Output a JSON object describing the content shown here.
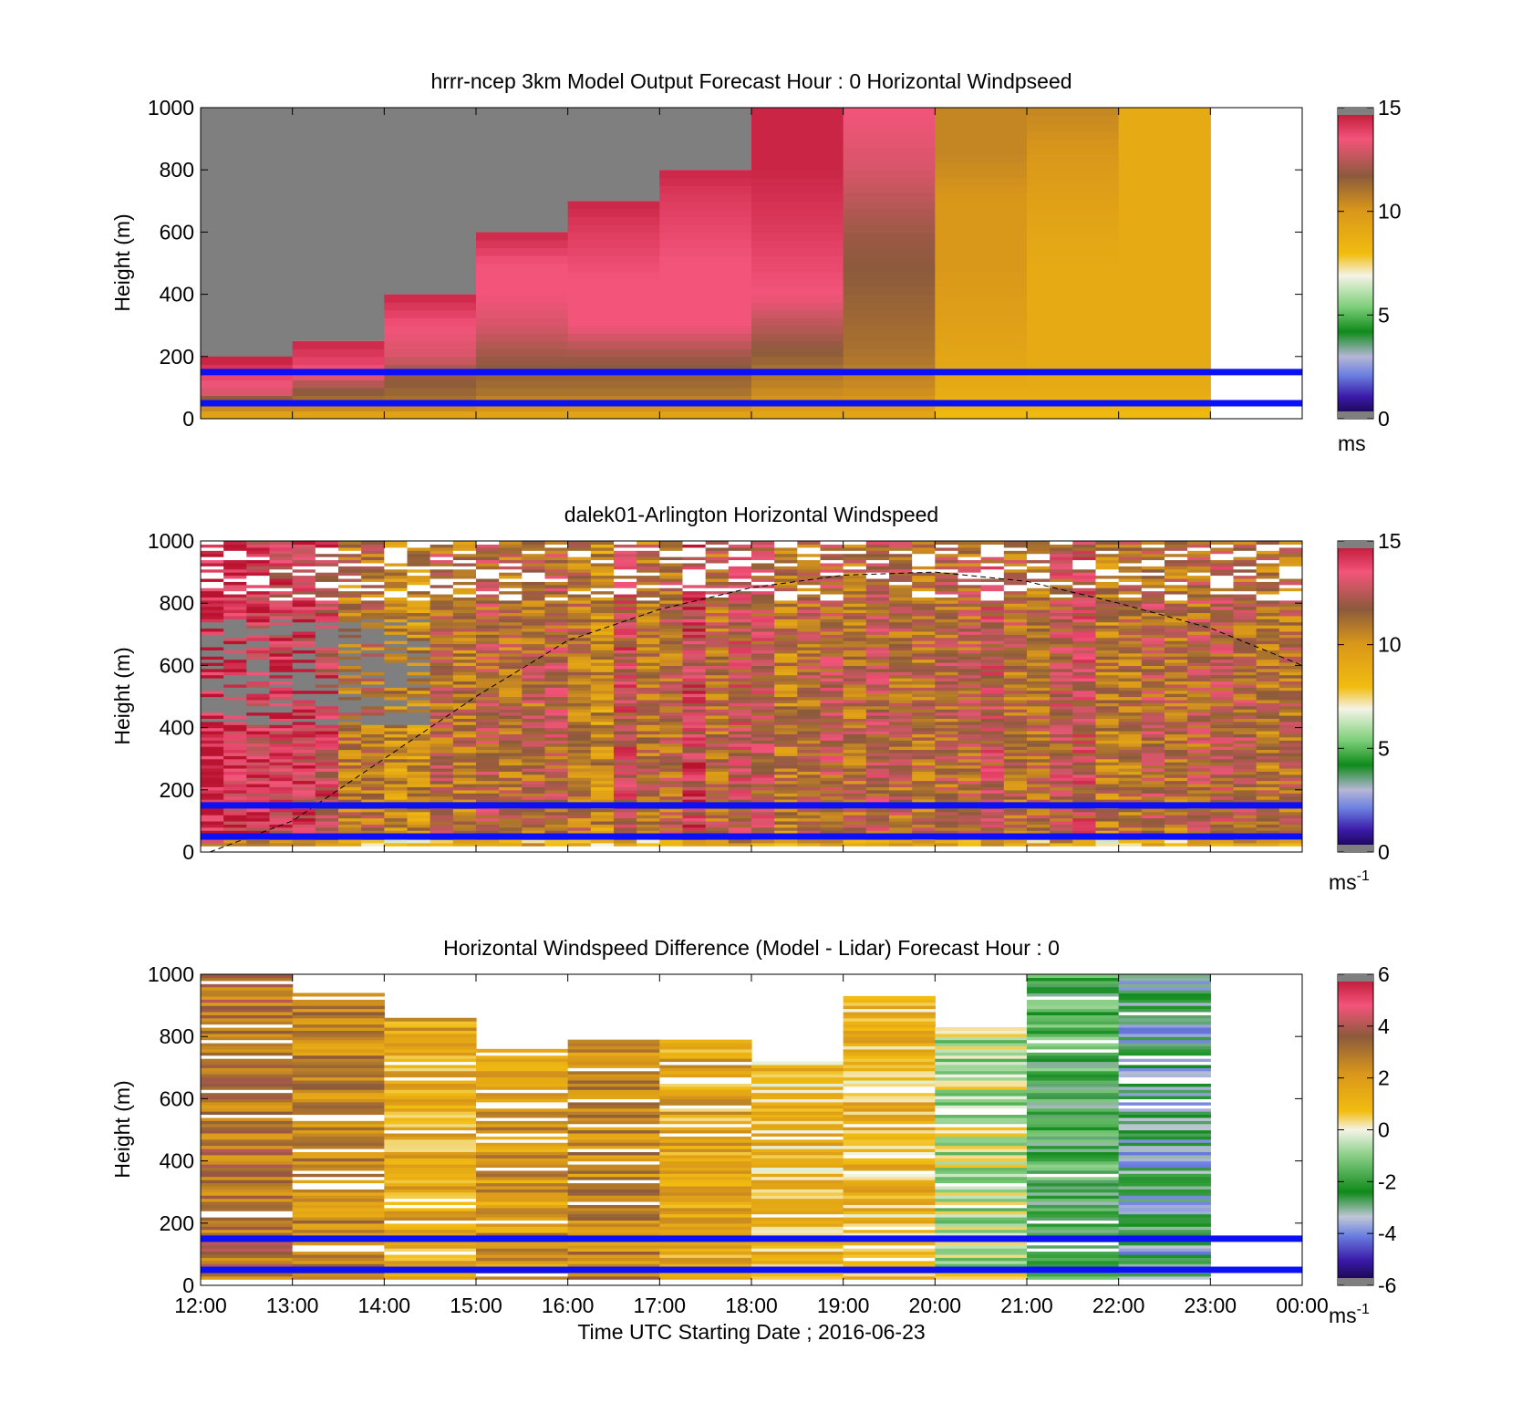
{
  "figure": {
    "xlabel": "Time UTC  Starting Date ; 2016-06-23"
  },
  "chart_data": [
    {
      "type": "heatmap",
      "id": "model",
      "title": "hrrr-ncep 3km Model Output   Forecast Hour : 0 Horizontal Windpseed",
      "ylabel": "Height (m)",
      "ylim": [
        0,
        1000
      ],
      "yticks": [
        "0",
        "200",
        "400",
        "600",
        "800",
        "1000"
      ],
      "xticks": [
        "12:00",
        "13:00",
        "14:00",
        "15:00",
        "16:00",
        "17:00",
        "18:00",
        "19:00",
        "20:00",
        "21:00",
        "22:00",
        "23:00",
        "00:00"
      ],
      "show_xtick_labels": false,
      "x_range_hours": [
        12,
        24
      ],
      "colorbar": {
        "min": 0,
        "max": 15,
        "ticks": [
          "0",
          "5",
          "10",
          "15"
        ],
        "unit": "ms",
        "unit_sup": "",
        "palette": "speed"
      },
      "reference_lines_m": [
        150,
        50
      ],
      "column_tops_m": [
        180,
        250,
        400,
        600,
        700,
        800,
        1000,
        1000,
        1000,
        1000,
        1000,
        0
      ],
      "column_speed_profiles": [
        [
          [
            0,
            9
          ],
          [
            30,
            10
          ],
          [
            50,
            11
          ],
          [
            80,
            13
          ],
          [
            120,
            13.5
          ],
          [
            180,
            14.5
          ]
        ],
        [
          [
            0,
            9
          ],
          [
            30,
            10
          ],
          [
            50,
            11
          ],
          [
            100,
            12
          ],
          [
            150,
            13.5
          ],
          [
            250,
            14.5
          ]
        ],
        [
          [
            0,
            9
          ],
          [
            30,
            10
          ],
          [
            50,
            11
          ],
          [
            150,
            12
          ],
          [
            200,
            13
          ],
          [
            300,
            13.5
          ],
          [
            400,
            14.5
          ]
        ],
        [
          [
            0,
            9
          ],
          [
            30,
            10
          ],
          [
            80,
            11
          ],
          [
            200,
            12
          ],
          [
            300,
            13
          ],
          [
            400,
            13.5
          ],
          [
            500,
            13.5
          ],
          [
            600,
            14.5
          ]
        ],
        [
          [
            0,
            9
          ],
          [
            30,
            10
          ],
          [
            80,
            11
          ],
          [
            200,
            12
          ],
          [
            300,
            13.5
          ],
          [
            450,
            13.5
          ],
          [
            600,
            14
          ],
          [
            700,
            14.5
          ]
        ],
        [
          [
            0,
            9
          ],
          [
            30,
            10
          ],
          [
            80,
            11
          ],
          [
            200,
            12
          ],
          [
            300,
            13.5
          ],
          [
            500,
            13.5
          ],
          [
            700,
            14
          ],
          [
            800,
            14.5
          ]
        ],
        [
          [
            0,
            9
          ],
          [
            50,
            10
          ],
          [
            150,
            11
          ],
          [
            300,
            12.5
          ],
          [
            400,
            13.5
          ],
          [
            600,
            14
          ],
          [
            800,
            14.5
          ],
          [
            1000,
            14.5
          ]
        ],
        [
          [
            0,
            9
          ],
          [
            50,
            10
          ],
          [
            200,
            11
          ],
          [
            400,
            11.5
          ],
          [
            600,
            12
          ],
          [
            800,
            13
          ],
          [
            1000,
            13.5
          ]
        ],
        [
          [
            0,
            8
          ],
          [
            100,
            9
          ],
          [
            300,
            9.5
          ],
          [
            500,
            10
          ],
          [
            700,
            10
          ],
          [
            850,
            10.5
          ],
          [
            1000,
            10.5
          ]
        ],
        [
          [
            0,
            8
          ],
          [
            100,
            9
          ],
          [
            300,
            9
          ],
          [
            500,
            9
          ],
          [
            700,
            9.5
          ],
          [
            850,
            10
          ],
          [
            1000,
            10.5
          ]
        ],
        [
          [
            0,
            8
          ],
          [
            100,
            9
          ],
          [
            300,
            9
          ],
          [
            500,
            9
          ],
          [
            700,
            9
          ],
          [
            1000,
            9
          ]
        ],
        [
          [
            0,
            8
          ],
          [
            1000,
            8
          ]
        ]
      ],
      "missing_value_region": "above column tops (grey)"
    },
    {
      "type": "heatmap",
      "id": "lidar",
      "title": "dalek01-Arlington  Horizontal Windspeed",
      "ylabel": "Height (m)",
      "ylim": [
        0,
        1000
      ],
      "yticks": [
        "0",
        "200",
        "400",
        "600",
        "800",
        "1000"
      ],
      "xticks": [
        "12:00",
        "13:00",
        "14:00",
        "15:00",
        "16:00",
        "17:00",
        "18:00",
        "19:00",
        "20:00",
        "21:00",
        "22:00",
        "23:00",
        "00:00"
      ],
      "show_xtick_labels": false,
      "x_range_hours": [
        12,
        24
      ],
      "colorbar": {
        "min": 0,
        "max": 15,
        "ticks": [
          "0",
          "5",
          "10",
          "15"
        ],
        "unit": "ms",
        "unit_sup": "-1",
        "palette": "speed"
      },
      "reference_lines_m": [
        150,
        50
      ],
      "columns": 48,
      "column_width_h": 0.25,
      "mean_speed_by_hour": [
        [
          12,
          14
        ],
        [
          13,
          13.5
        ],
        [
          14,
          11.5
        ],
        [
          15,
          11
        ],
        [
          16,
          10.5
        ],
        [
          17,
          12.5
        ],
        [
          18,
          12
        ],
        [
          19,
          11
        ],
        [
          20,
          10.5
        ],
        [
          21,
          11.5
        ],
        [
          22,
          11.5
        ],
        [
          23,
          11
        ],
        [
          24,
          10.5
        ]
      ],
      "boundary_layer_curve": [
        [
          12.1,
          0
        ],
        [
          13,
          100
        ],
        [
          14,
          300
        ],
        [
          15,
          500
        ],
        [
          16,
          680
        ],
        [
          17,
          780
        ],
        [
          18,
          850
        ],
        [
          19,
          890
        ],
        [
          20,
          900
        ],
        [
          21,
          870
        ],
        [
          22,
          800
        ],
        [
          23,
          720
        ],
        [
          24,
          600
        ]
      ]
    },
    {
      "type": "heatmap",
      "id": "difference",
      "title": "Horizontal Windspeed Difference (Model - Lidar) Forecast Hour : 0",
      "ylabel": "Height (m)",
      "ylim": [
        0,
        1000
      ],
      "yticks": [
        "0",
        "200",
        "400",
        "600",
        "800",
        "1000"
      ],
      "xticks": [
        "12:00",
        "13:00",
        "14:00",
        "15:00",
        "16:00",
        "17:00",
        "18:00",
        "19:00",
        "20:00",
        "21:00",
        "22:00",
        "23:00",
        "00:00"
      ],
      "show_xtick_labels": true,
      "x_range_hours": [
        12,
        24
      ],
      "colorbar": {
        "min": -6,
        "max": 6,
        "ticks": [
          "-6",
          "-4",
          "-2",
          "0",
          "2",
          "4",
          "6"
        ],
        "unit": "ms",
        "unit_sup": "-1",
        "palette": "diff"
      },
      "reference_lines_m": [
        150,
        50
      ],
      "column_mean_diff": [
        3,
        2.5,
        1.5,
        2,
        2.5,
        1.5,
        1,
        1,
        -0.5,
        -2,
        -3,
        0
      ],
      "column_top_m": [
        1000,
        940,
        860,
        760,
        790,
        790,
        720,
        930,
        830,
        1000,
        1000,
        0
      ]
    }
  ]
}
